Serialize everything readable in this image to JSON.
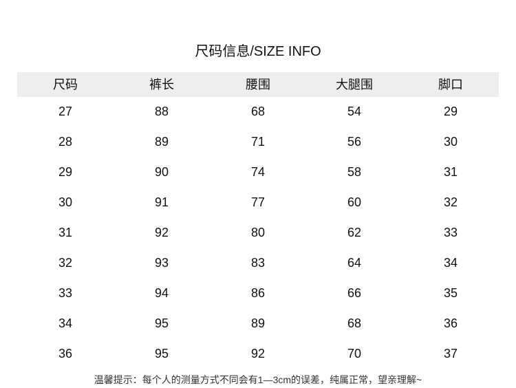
{
  "title": "尺码信息/SIZE INFO",
  "table": {
    "headers": [
      "尺码",
      "裤长",
      "腰围",
      "大腿围",
      "脚口"
    ],
    "rows": [
      [
        "27",
        "88",
        "68",
        "54",
        "29"
      ],
      [
        "28",
        "89",
        "71",
        "56",
        "30"
      ],
      [
        "29",
        "90",
        "74",
        "58",
        "31"
      ],
      [
        "30",
        "91",
        "77",
        "60",
        "32"
      ],
      [
        "31",
        "92",
        "80",
        "62",
        "33"
      ],
      [
        "32",
        "93",
        "83",
        "64",
        "34"
      ],
      [
        "33",
        "94",
        "86",
        "66",
        "35"
      ],
      [
        "34",
        "95",
        "89",
        "68",
        "36"
      ],
      [
        "36",
        "95",
        "92",
        "70",
        "37"
      ]
    ]
  },
  "note": "温馨提示：每个人的测量方式不同会有1—3cm的误差，纯属正常，望亲理解~",
  "colors": {
    "header_bg": "#eeeeee",
    "text": "#111111"
  }
}
